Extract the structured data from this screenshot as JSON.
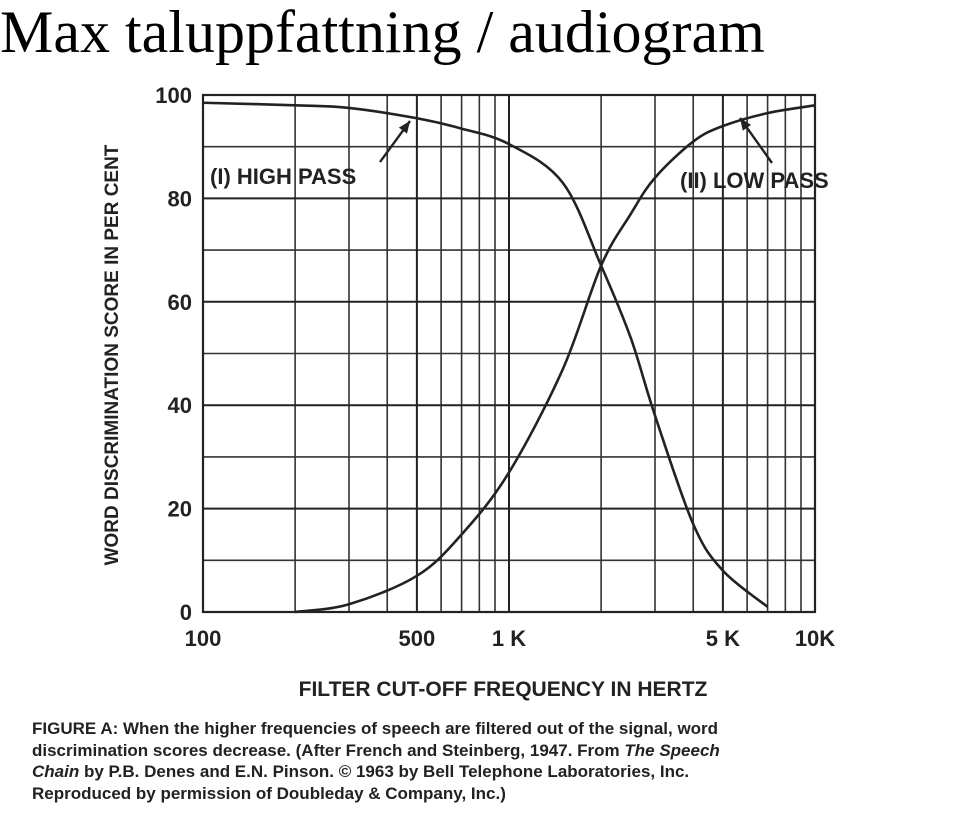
{
  "chart_data": {
    "type": "line",
    "title": "Max taluppfattning / audiogram",
    "xlabel": "FILTER CUT-OFF FREQUENCY IN HERTZ",
    "ylabel": "WORD DISCRIMINATION SCORE IN PER CENT",
    "xscale": "log",
    "grid": true,
    "x": [
      100,
      200,
      300,
      500,
      700,
      1000,
      1500,
      2000,
      2500,
      3000,
      4000,
      5000,
      7000,
      10000
    ],
    "series": [
      {
        "name": "(I) HIGH PASS",
        "color": "#222222",
        "values": [
          98.5,
          98,
          97.5,
          95.5,
          93.5,
          90.5,
          83,
          67,
          53,
          38,
          17,
          8,
          1,
          null
        ]
      },
      {
        "name": "(II) LOW PASS",
        "color": "#222222",
        "values": [
          null,
          0,
          1.5,
          7,
          15,
          27,
          47,
          67,
          77,
          84,
          91,
          94,
          96.5,
          98
        ]
      }
    ],
    "xlim": [
      100,
      10000
    ],
    "ylim": [
      0,
      100
    ],
    "xticks": [
      100,
      500,
      {
        "value": 1000,
        "label": "1 K"
      },
      {
        "value": 5000,
        "label": "5 K"
      },
      {
        "value": 10000,
        "label": "10K"
      }
    ],
    "yticks": [
      0,
      20,
      40,
      60,
      80,
      100
    ],
    "x_minor_ticks": [
      200,
      300,
      400,
      600,
      700,
      800,
      900,
      2000,
      3000,
      4000,
      6000,
      7000,
      8000,
      9000
    ],
    "y_minor_ticks": [
      10,
      30,
      50,
      70,
      90
    ],
    "caption": [
      [
        {
          "text": "FIGURE A: When the higher frequencies of speech are filtered out of the signal, word",
          "italic": false
        }
      ],
      [
        {
          "text": "discrimination scores decrease. (After French and Steinberg, 1947. From ",
          "italic": false
        },
        {
          "text": "The Speech",
          "italic": true
        }
      ],
      [
        {
          "text": "Chain",
          "italic": true
        },
        {
          "text": " by P.B. Denes and E.N. Pinson. © 1963 by Bell Telephone Laboratories, Inc.",
          "italic": false
        }
      ],
      [
        {
          "text": "Reproduced by permission of Doubleday & Company, Inc.)",
          "italic": false
        }
      ]
    ]
  }
}
